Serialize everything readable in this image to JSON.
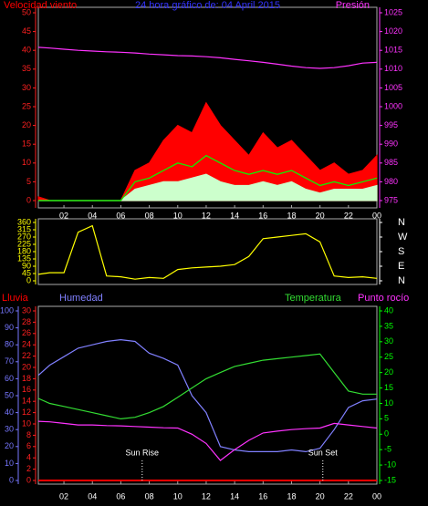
{
  "chart_data": [
    {
      "type": "line",
      "title": "24 hora gráfico de: 04 April 2015",
      "title_color": "#3333ff",
      "x": [
        0.2,
        1,
        2,
        3,
        4,
        5,
        6,
        7,
        8,
        9,
        10,
        11,
        12,
        13,
        14,
        15,
        16,
        17,
        18,
        19,
        20,
        21,
        22,
        23,
        24
      ],
      "xlim": [
        0.2,
        24
      ],
      "xticks": [
        {
          "value": 2,
          "label": "02"
        },
        {
          "value": 4,
          "label": "04"
        },
        {
          "value": 6,
          "label": "06"
        },
        {
          "value": 8,
          "label": "08"
        },
        10,
        12,
        14,
        16,
        18,
        20,
        22,
        {
          "value": 24,
          "label": "00"
        }
      ],
      "axes": [
        {
          "side": "left",
          "color": "#ff2020",
          "lim": [
            0,
            50
          ],
          "ticks": [
            0,
            5,
            10,
            15,
            20,
            25,
            30,
            35,
            40,
            45,
            50
          ]
        },
        {
          "side": "right",
          "color": "#ff33ff",
          "lim": [
            975,
            1025
          ],
          "ticks": [
            975,
            980,
            985,
            990,
            995,
            1000,
            1005,
            1010,
            1015,
            1020,
            1025
          ]
        }
      ],
      "series": [
        {
          "name": "Velocidad viento",
          "color": "#ff0000",
          "axis": 0,
          "fill": true,
          "values": [
            1,
            0,
            0,
            0,
            0,
            0,
            0,
            8,
            10,
            16,
            20,
            18,
            26,
            20,
            16,
            12,
            18,
            14,
            16,
            12,
            8,
            10,
            7,
            8,
            12
          ]
        },
        {
          "color": "#ccffcc",
          "axis": 0,
          "fill": true,
          "values": [
            0,
            0,
            0,
            0,
            0,
            0,
            0,
            3,
            4,
            5,
            5,
            6,
            7,
            5,
            4,
            4,
            5,
            4,
            5,
            3,
            2,
            3,
            3,
            3,
            4
          ]
        },
        {
          "color": "#00ff00",
          "axis": 0,
          "values": [
            0,
            0,
            0,
            0,
            0,
            0,
            0,
            5,
            6,
            8,
            10,
            9,
            12,
            10,
            8,
            7,
            8,
            7,
            8,
            6,
            4,
            5,
            4,
            5,
            6
          ]
        },
        {
          "name": "Presión",
          "color": "#ff33ff",
          "axis": 1,
          "values": [
            1015.8,
            1015.6,
            1015.3,
            1015,
            1014.8,
            1014.6,
            1014.5,
            1014.3,
            1014,
            1013.8,
            1013.6,
            1013.5,
            1013.3,
            1013,
            1012.6,
            1012.2,
            1011.8,
            1011.3,
            1010.8,
            1010.4,
            1010.2,
            1010.4,
            1010.9,
            1011.6,
            1011.8
          ]
        }
      ]
    },
    {
      "type": "line",
      "x": [
        0.2,
        1,
        2,
        3,
        4,
        5,
        6,
        7,
        8,
        9,
        10,
        11,
        12,
        13,
        14,
        15,
        16,
        17,
        18,
        19,
        20,
        21,
        22,
        23,
        24
      ],
      "xlim": [
        0.2,
        24
      ],
      "axes": [
        {
          "side": "left",
          "color": "#ffff00",
          "lim": [
            0,
            360
          ],
          "ticks": [
            0,
            45,
            90,
            135,
            180,
            225,
            270,
            315,
            360
          ]
        },
        {
          "side": "right",
          "color": "#ffffff",
          "lim": [
            0,
            360
          ],
          "ticks": [
            {
              "value": 360,
              "label": "N"
            },
            {
              "value": 270,
              "label": "W"
            },
            {
              "value": 180,
              "label": "S"
            },
            {
              "value": 90,
              "label": "E"
            },
            {
              "value": 0,
              "label": "N"
            }
          ]
        }
      ],
      "series": [
        {
          "color": "#ffff00",
          "axis": 0,
          "values": [
            40,
            50,
            50,
            300,
            340,
            30,
            25,
            10,
            20,
            15,
            70,
            80,
            85,
            90,
            100,
            150,
            260,
            270,
            280,
            290,
            240,
            30,
            20,
            25,
            15
          ]
        }
      ]
    },
    {
      "type": "line",
      "x": [
        0.2,
        1,
        2,
        3,
        4,
        5,
        6,
        7,
        8,
        9,
        10,
        11,
        12,
        13,
        14,
        15,
        16,
        17,
        18,
        19,
        20,
        21,
        22,
        23,
        24
      ],
      "xlim": [
        0.2,
        24
      ],
      "xticks": [
        {
          "value": 2,
          "label": "02"
        },
        {
          "value": 4,
          "label": "04"
        },
        {
          "value": 6,
          "label": "06"
        },
        {
          "value": 8,
          "label": "08"
        },
        10,
        12,
        14,
        16,
        18,
        20,
        22,
        {
          "value": 24,
          "label": "00"
        }
      ],
      "axes": [
        {
          "side": "left-outer",
          "color": "#7777ff",
          "lim": [
            0,
            100
          ],
          "ticks": [
            0,
            10,
            20,
            30,
            40,
            50,
            60,
            70,
            80,
            90,
            100
          ]
        },
        {
          "side": "left",
          "color": "#ff2020",
          "lim": [
            0,
            30
          ],
          "ticks": [
            0,
            2,
            4,
            6,
            8,
            10,
            12,
            14,
            16,
            18,
            20,
            22,
            24,
            26,
            28,
            30
          ]
        },
        {
          "side": "right",
          "color": "#00ff00",
          "lim": [
            -15,
            40
          ],
          "ticks": [
            -15,
            -10,
            -5,
            0,
            5,
            10,
            15,
            20,
            25,
            30,
            35,
            40
          ]
        }
      ],
      "series": [
        {
          "name": "Lluvia",
          "color": "#ff0000",
          "axis": 1,
          "values": [
            0,
            0,
            0,
            0,
            0,
            0,
            0,
            0,
            0,
            0,
            0,
            0,
            0,
            0,
            0,
            0,
            0,
            0,
            0,
            0,
            0,
            0,
            0,
            0,
            0
          ]
        },
        {
          "name": "Humedad",
          "color": "#8080ff",
          "axis": 0,
          "values": [
            62,
            68,
            73,
            78,
            80,
            82,
            83,
            82,
            75,
            72,
            68,
            50,
            40,
            20,
            18,
            17,
            17,
            17,
            18,
            17,
            19,
            30,
            43,
            47,
            48
          ]
        },
        {
          "name": "Temperatura",
          "color": "#33dd33",
          "axis": 2,
          "values": [
            11.6,
            10,
            9,
            8,
            7,
            6,
            5,
            5.5,
            7,
            9,
            12,
            15,
            18,
            20,
            22,
            23,
            24,
            24.5,
            25,
            25.5,
            26,
            20,
            14,
            13,
            13
          ]
        },
        {
          "name": "Punto rocío",
          "color": "#ff33ff",
          "axis": 2,
          "values": [
            4.2,
            4,
            3.5,
            3,
            3,
            2.8,
            2.7,
            2.5,
            2.3,
            2.1,
            2,
            0,
            -3,
            -8.5,
            -5,
            -2,
            0.4,
            1,
            1.5,
            1.8,
            2,
            3.5,
            3,
            2.5,
            2
          ]
        }
      ],
      "annotations": [
        {
          "text": "Sun Rise",
          "x": 7.5
        },
        {
          "text": "Sun Set",
          "x": 20.2
        }
      ]
    }
  ]
}
